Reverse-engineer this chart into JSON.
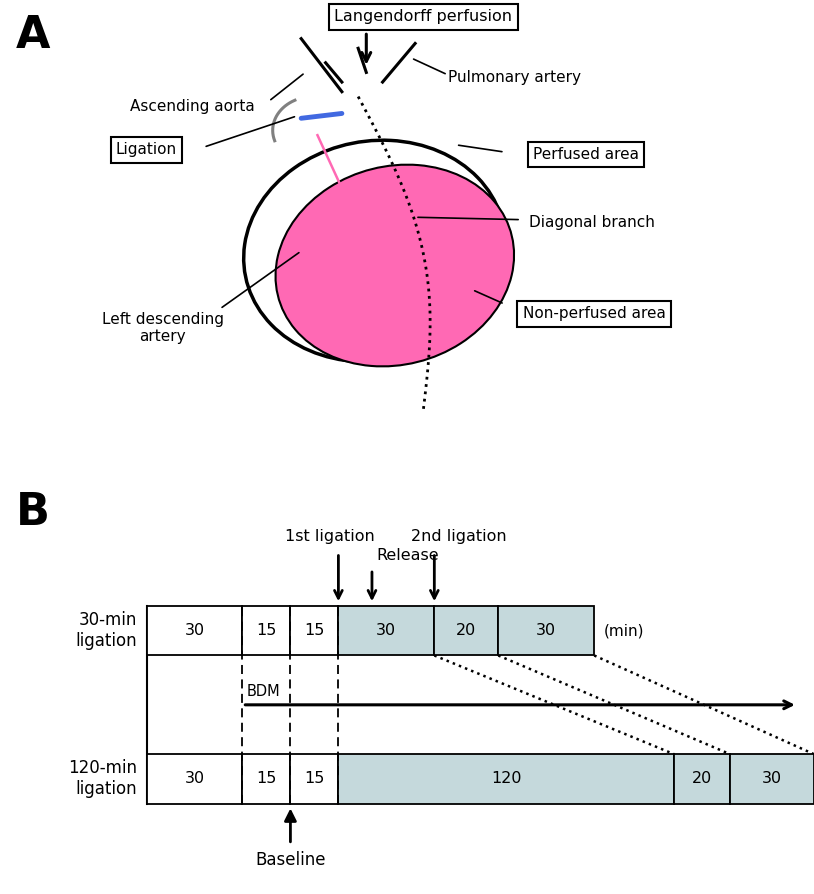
{
  "fig_width": 8.14,
  "fig_height": 8.94,
  "background": "#ffffff",
  "panel_A": {
    "label": "A",
    "pink_color": "#FF69B4",
    "blue_color": "#4169E1",
    "gray_color": "#808080"
  },
  "panel_B": {
    "label": "B",
    "row1_times": [
      30,
      15,
      15,
      30,
      20,
      30
    ],
    "row2_times": [
      30,
      15,
      15,
      120,
      20,
      30
    ],
    "white_box": "#ffffff",
    "light_box": "#c5d9dc",
    "arrow_labels": [
      "1st ligation",
      "Release",
      "2nd ligation"
    ],
    "row1_label": "30-min\nligation",
    "row2_label": "120-min\nligation",
    "bdm_label": "BDM",
    "baseline_label": "Baseline",
    "min_label": "(min)"
  }
}
